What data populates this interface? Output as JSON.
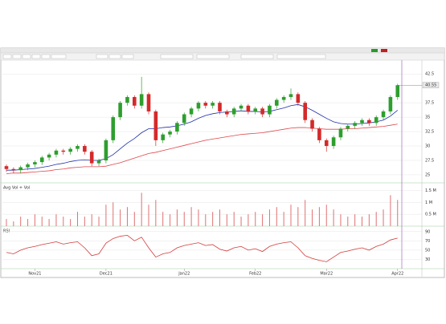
{
  "chart_data": {
    "type": "candlestick",
    "categories": [
      null,
      null,
      null,
      null,
      "Nov21",
      null,
      null,
      null,
      null,
      null,
      null,
      null,
      null,
      null,
      "Dec21",
      null,
      null,
      null,
      null,
      null,
      null,
      null,
      null,
      null,
      null,
      "Jan22",
      null,
      null,
      null,
      null,
      null,
      null,
      null,
      null,
      null,
      "Feb22",
      null,
      null,
      null,
      null,
      null,
      null,
      null,
      null,
      null,
      "Mar22",
      null,
      null,
      null,
      null,
      null,
      null,
      null,
      null,
      null,
      "Apr22"
    ],
    "open": [
      26.5,
      26,
      25.8,
      26.3,
      26.8,
      27.2,
      28,
      28.5,
      29.2,
      29,
      29.5,
      30,
      29,
      27,
      27.5,
      31,
      35,
      37.5,
      38.5,
      37,
      39,
      36,
      31,
      32,
      32.5,
      34,
      35.5,
      36.5,
      37.5,
      37,
      37.5,
      36,
      35.5,
      36.5,
      37,
      36,
      36.5,
      35.5,
      37,
      38,
      38.5,
      39,
      37.5,
      34.5,
      33,
      31,
      30,
      31.5,
      33,
      33.5,
      34,
      34.5,
      34,
      35,
      36,
      38.5
    ],
    "high": [
      26.8,
      26.3,
      26.6,
      27.1,
      27.5,
      28.3,
      28.8,
      29.5,
      29.5,
      29.8,
      30.3,
      30.3,
      29.3,
      27.8,
      31.3,
      35.3,
      37.8,
      38.8,
      38.8,
      42,
      39.3,
      36.3,
      32.3,
      32.8,
      34.3,
      35.8,
      36.8,
      37.8,
      37.8,
      37.8,
      37.8,
      36.3,
      36.8,
      37.3,
      37.3,
      36.8,
      36.8,
      37.3,
      38.3,
      38.8,
      40,
      39.3,
      37.8,
      34.8,
      33.3,
      31.3,
      31.8,
      33.3,
      33.8,
      34.3,
      34.8,
      34.8,
      35.3,
      36.3,
      38.8,
      40.8
    ],
    "low": [
      25.5,
      25.3,
      25.3,
      25.8,
      26.3,
      26.7,
      27.5,
      28,
      28.5,
      28.5,
      29,
      28.5,
      26.5,
      26.5,
      27,
      30.5,
      34.5,
      37,
      36.5,
      36.5,
      35.5,
      30,
      30.5,
      31.5,
      32,
      33.5,
      35,
      36,
      36.5,
      36.5,
      35.5,
      35,
      35,
      36,
      35.5,
      35.5,
      35,
      35,
      36.5,
      37.5,
      38,
      37,
      34,
      32.5,
      30.5,
      29,
      29.5,
      31,
      32.5,
      33,
      33.5,
      33.5,
      33.5,
      34.5,
      35.5,
      38
    ],
    "close": [
      26,
      25.8,
      26.3,
      26.8,
      27.2,
      28,
      28.5,
      29.2,
      29,
      29.5,
      30,
      29,
      27,
      27.5,
      31,
      35,
      37.5,
      38.5,
      37,
      39,
      36,
      31,
      32,
      32.5,
      34,
      35.5,
      36.5,
      37.5,
      37,
      37.5,
      36,
      35.5,
      36.5,
      37,
      36,
      36.5,
      35.5,
      37,
      38,
      38.5,
      39,
      37.5,
      34.5,
      33,
      31,
      30,
      31.5,
      33,
      33.5,
      34,
      34.5,
      34,
      35,
      36,
      38.5,
      40.55
    ],
    "up_color": "#2e9e2e",
    "down_color": "#d42a2a",
    "lines": [
      {
        "color": "#1f2fa8",
        "values": [
          25.8,
          25.8,
          25.9,
          26,
          26.1,
          26.3,
          26.5,
          26.8,
          27,
          27.3,
          27.5,
          27.6,
          27.5,
          27.5,
          27.8,
          28.5,
          29.5,
          30.5,
          31.3,
          32.3,
          33,
          33,
          33.2,
          33.3,
          33.5,
          33.8,
          34.2,
          34.8,
          35.3,
          35.6,
          35.8,
          35.9,
          36,
          36.1,
          36,
          36,
          35.9,
          36,
          36.3,
          36.6,
          37,
          37.2,
          36.8,
          36.2,
          35.5,
          34.8,
          34.2,
          33.9,
          33.8,
          33.8,
          33.9,
          34,
          34.2,
          34.5,
          35.2,
          36.2
        ]
      },
      {
        "color": "#e0454a",
        "values": [
          25.2,
          25.3,
          25.3,
          25.4,
          25.5,
          25.6,
          25.7,
          25.9,
          26,
          26.2,
          26.3,
          26.4,
          26.4,
          26.4,
          26.5,
          26.8,
          27.1,
          27.5,
          27.9,
          28.3,
          28.7,
          28.9,
          29.2,
          29.5,
          29.8,
          30.1,
          30.4,
          30.7,
          31,
          31.2,
          31.4,
          31.6,
          31.8,
          32,
          32.1,
          32.2,
          32.3,
          32.5,
          32.7,
          32.9,
          33.1,
          33.2,
          33.2,
          33.1,
          33,
          32.9,
          32.9,
          32.9,
          33,
          33,
          33.1,
          33.2,
          33.3,
          33.4,
          33.6,
          33.8
        ]
      }
    ],
    "ylim": [
      23.6,
      44.9
    ],
    "yticks": [
      25,
      27.5,
      30,
      32.5,
      35,
      37.5,
      42.5
    ],
    "last_price": 40.55,
    "volume_title": "Avg Vol + Vol",
    "volume": [
      0.3,
      0.2,
      0.4,
      0.3,
      0.5,
      0.4,
      0.3,
      0.5,
      0.4,
      0.3,
      0.6,
      0.4,
      0.5,
      0.4,
      0.9,
      1.0,
      0.7,
      0.8,
      0.6,
      1.4,
      0.9,
      1.1,
      0.6,
      0.5,
      0.7,
      0.6,
      0.8,
      0.7,
      0.5,
      0.6,
      0.7,
      0.5,
      0.6,
      0.4,
      0.5,
      0.6,
      0.5,
      0.7,
      0.8,
      0.6,
      0.9,
      0.8,
      1.1,
      0.7,
      0.8,
      0.9,
      0.7,
      0.5,
      0.4,
      0.5,
      0.4,
      0.5,
      0.6,
      0.7,
      1.3,
      1.1
    ],
    "volume_color": "#e07070",
    "volume_ylim": [
      0,
      1.75
    ],
    "volume_ticks": [
      {
        "value": 0.5,
        "label": "0.5 M"
      },
      {
        "value": 1,
        "label": "1 M"
      },
      {
        "value": 1.5,
        "label": "1.5 M"
      }
    ],
    "rsi_title": "RSI",
    "rsi": [
      45,
      42,
      50,
      55,
      58,
      62,
      65,
      68,
      63,
      66,
      68,
      55,
      38,
      42,
      65,
      75,
      80,
      82,
      70,
      78,
      55,
      35,
      42,
      45,
      55,
      60,
      63,
      66,
      60,
      62,
      52,
      48,
      55,
      58,
      50,
      53,
      47,
      58,
      63,
      66,
      68,
      55,
      38,
      32,
      28,
      25,
      35,
      45,
      48,
      52,
      55,
      50,
      58,
      63,
      72,
      76
    ],
    "rsi_color": "#d43a3a",
    "rsi_ylim": [
      10,
      100
    ],
    "rsi_ticks": [
      30,
      50,
      70,
      90
    ]
  }
}
